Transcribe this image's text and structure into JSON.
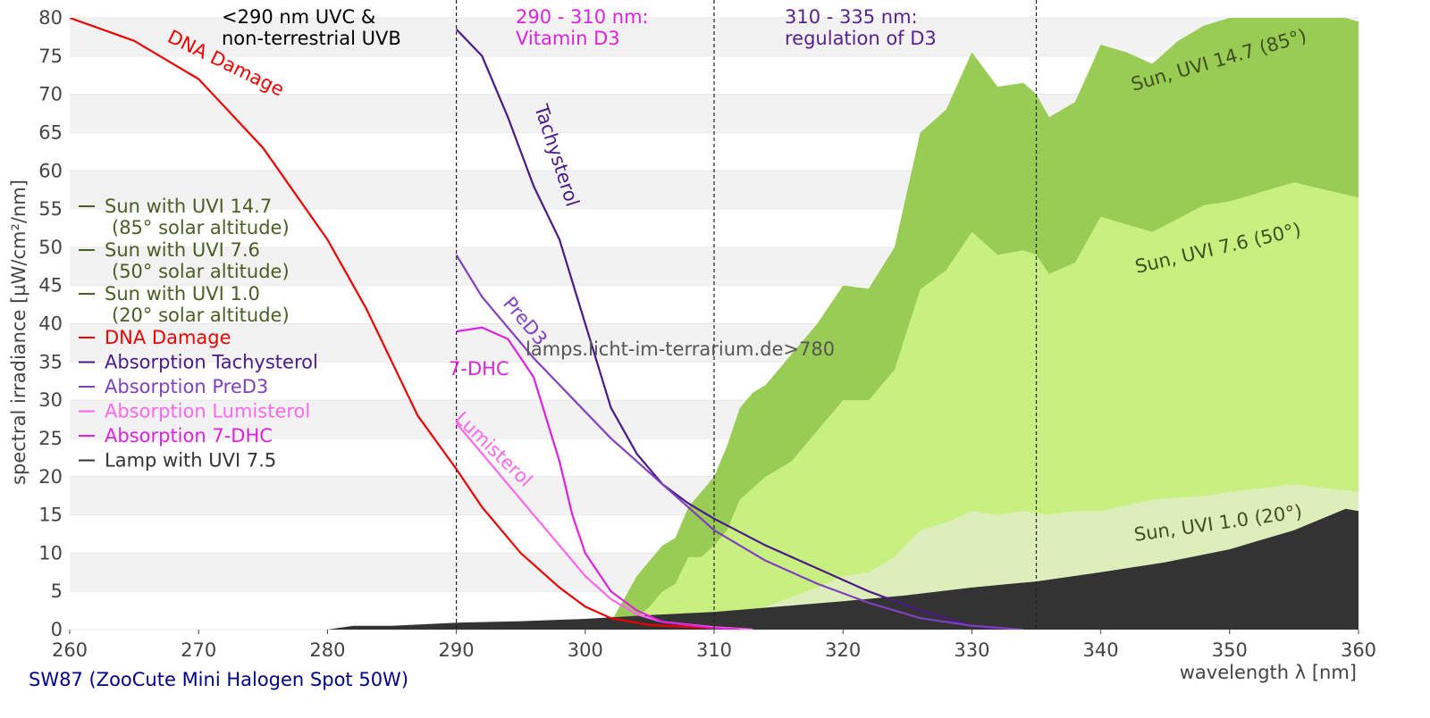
{
  "chart_data": {
    "type": "line",
    "footer": "SW87 (ZooCute Mini Halogen Spot 50W)",
    "xlabel": "wavelength λ [nm]",
    "ylabel": "spectral irradiance [µW/cm²/nm]",
    "xlim": [
      260,
      360
    ],
    "ylim": [
      0,
      80
    ],
    "xticks": [
      260,
      270,
      280,
      290,
      300,
      310,
      320,
      330,
      340,
      350,
      360
    ],
    "yticks": [
      0,
      5,
      10,
      15,
      20,
      25,
      30,
      35,
      40,
      45,
      50,
      55,
      60,
      65,
      70,
      75,
      80
    ],
    "grid": true,
    "vlines": [
      290,
      310,
      335
    ],
    "series": [
      {
        "name": "Sun with UVI 14.7\n(85° solar altitude)",
        "kind": "area",
        "color": "#99cc55",
        "legend_color": "#4a5e23",
        "x": [
          301,
          302,
          303,
          304,
          305,
          306,
          307,
          308,
          309,
          310,
          311,
          312,
          313,
          314,
          315,
          316,
          318,
          320,
          322,
          324,
          326,
          328,
          330,
          332,
          334,
          335,
          336,
          338,
          340,
          342,
          344,
          346,
          348,
          350,
          352,
          355,
          358,
          360
        ],
        "values": [
          0,
          1,
          4,
          7,
          9,
          11,
          12,
          16,
          18,
          20,
          24,
          29,
          31,
          32,
          34,
          36,
          40,
          45,
          44.6,
          50,
          65,
          68,
          75.5,
          71,
          71.5,
          70,
          67,
          69,
          76.5,
          75.5,
          74,
          77,
          79,
          80,
          81.5,
          83,
          80.5,
          79.5
        ]
      },
      {
        "name": "Sun with UVI 7.6\n(50° solar altitude)",
        "kind": "area",
        "color": "#c8f080",
        "legend_color": "#4a5e23",
        "x": [
          303,
          305,
          306,
          307,
          308,
          309,
          310,
          311,
          312,
          314,
          316,
          318,
          320,
          322,
          324,
          326,
          328,
          330,
          332,
          334,
          335,
          336,
          338,
          340,
          344,
          348,
          350,
          355,
          360
        ],
        "values": [
          0,
          3,
          5,
          6,
          9.5,
          9.5,
          11,
          13,
          17,
          20,
          22,
          26,
          30,
          30,
          34,
          44.5,
          47,
          52,
          49,
          49.6,
          49,
          46.5,
          48,
          54,
          52,
          55.5,
          56,
          58.5,
          56.5
        ]
      },
      {
        "name": "Sun with UVI 1.0\n(20° solar altitude)",
        "kind": "area",
        "color": "#ddeebb",
        "legend_color": "#4a5e23",
        "x": [
          306,
          310,
          314,
          318,
          320,
          322,
          324,
          326,
          328,
          330,
          332,
          334,
          336,
          338,
          340,
          344,
          348,
          350,
          355,
          360
        ],
        "values": [
          0,
          1,
          3,
          5.5,
          7,
          7.5,
          9.5,
          13,
          14,
          15.5,
          15,
          15.5,
          15,
          15.5,
          15.5,
          17,
          17.5,
          18,
          19,
          18
        ]
      },
      {
        "name": "DNA Damage",
        "kind": "line",
        "color": "#ee0000",
        "x": [
          260,
          265,
          270,
          275,
          280,
          283,
          285,
          287,
          290,
          292,
          295,
          298,
          300,
          302,
          305,
          310
        ],
        "values": [
          80,
          77,
          72,
          63,
          51,
          42,
          35,
          28,
          21,
          16,
          10,
          5.5,
          3,
          1.5,
          0.6,
          0.2
        ]
      },
      {
        "name": "Absorption Tachysterol",
        "kind": "line",
        "color": "#4b1a8a",
        "x": [
          290,
          292,
          294,
          296,
          298,
          300,
          302,
          304,
          306,
          308,
          310,
          314,
          318,
          322,
          326,
          330,
          332
        ],
        "values": [
          78.5,
          75,
          67,
          58,
          51,
          40,
          29,
          23,
          19,
          16.5,
          14.5,
          11,
          8,
          5,
          2.5,
          0.5,
          0
        ]
      },
      {
        "name": "Absorption PreD3",
        "kind": "line",
        "color": "#8040c0",
        "x": [
          290,
          292,
          294,
          296,
          298,
          300,
          302,
          304,
          306,
          308,
          310,
          314,
          318,
          322,
          326,
          330,
          334
        ],
        "values": [
          49,
          43.5,
          39.5,
          35.5,
          32,
          28.5,
          25,
          22,
          19,
          16,
          13,
          9,
          6,
          3.5,
          1.5,
          0.5,
          0
        ]
      },
      {
        "name": "Absorption Lumisterol",
        "kind": "line",
        "color": "#ff66ee",
        "x": [
          290,
          293,
          296,
          298,
          300,
          302,
          304,
          306,
          310,
          313
        ],
        "values": [
          27,
          21,
          15,
          11,
          7,
          4,
          2,
          1,
          0.3,
          0
        ]
      },
      {
        "name": "Absorption 7-DHC",
        "kind": "line",
        "color": "#dd22dd",
        "x": [
          290,
          292,
          294,
          296,
          298,
          299,
          300,
          302,
          304,
          306,
          310,
          312
        ],
        "values": [
          39,
          39.5,
          38,
          33,
          22,
          15,
          10,
          5,
          2.5,
          1,
          0.2,
          0
        ]
      },
      {
        "name": "Lamp with UVI 7.5",
        "kind": "area",
        "color": "#333333",
        "x": [
          280,
          282,
          285,
          290,
          295,
          300,
          305,
          310,
          315,
          320,
          325,
          330,
          335,
          340,
          345,
          350,
          355,
          359,
          360
        ],
        "values": [
          0,
          0.5,
          0.5,
          0.9,
          1.1,
          1.4,
          1.9,
          2.3,
          3,
          3.7,
          4.5,
          5.5,
          6.3,
          7.5,
          8.8,
          10.5,
          13,
          15.8,
          15.5
        ]
      }
    ],
    "annotations": [
      {
        "text": "<290 nm UVC &\nnon-terrestrial UVB",
        "color": "#000000"
      },
      {
        "text": "290 - 310 nm:\nVitamin D3",
        "color": "#dd22dd"
      },
      {
        "text": "310 - 335 nm:\nregulation of D3",
        "color": "#5a2090"
      },
      {
        "text": "lamps.licht-im-terrarium.de>780",
        "color": "#555555"
      },
      {
        "text": "DNA Damage",
        "color": "#ee0000"
      },
      {
        "text": "Tachysterol",
        "color": "#4b1a8a"
      },
      {
        "text": "PreD3",
        "color": "#8040c0"
      },
      {
        "text": "7-DHC",
        "color": "#dd22dd"
      },
      {
        "text": "Lumisterol",
        "color": "#ff66ee"
      },
      {
        "text": "Sun, UVI 14.7 (85°)",
        "color": "#3e4e20"
      },
      {
        "text": "Sun, UVI 7.6 (50°)",
        "color": "#3e4e20"
      },
      {
        "text": "Sun, UVI 1.0 (20°)",
        "color": "#3e4e20"
      }
    ]
  }
}
